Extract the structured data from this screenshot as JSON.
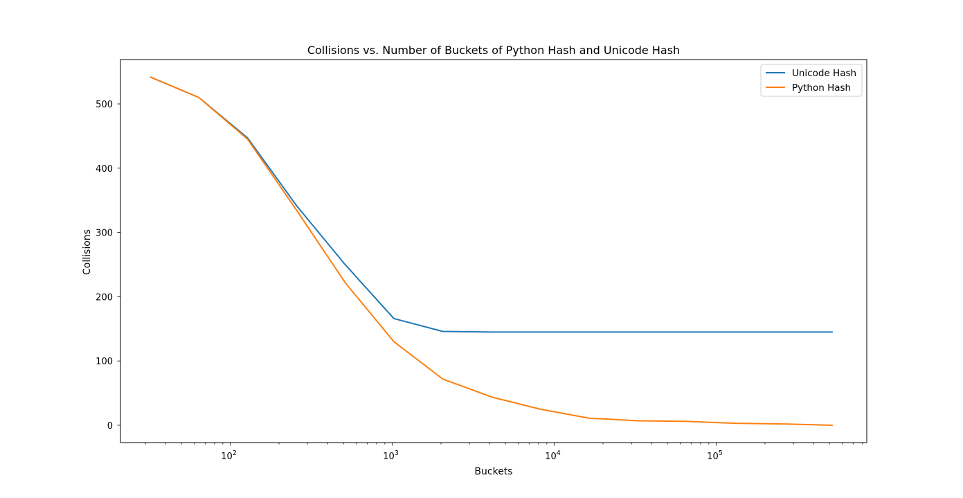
{
  "chart_data": {
    "type": "line",
    "title": "Collisions vs. Number of Buckets of Python Hash and Unicode Hash",
    "xlabel": "Buckets",
    "ylabel": "Collisions",
    "xscale": "log",
    "xlim": [
      21,
      850000
    ],
    "ylim": [
      -27,
      569
    ],
    "grid": false,
    "legend_position": "top-right",
    "x_ticks": [
      {
        "value": 100,
        "base": "10",
        "exp": "2"
      },
      {
        "value": 1000,
        "base": "10",
        "exp": "3"
      },
      {
        "value": 10000,
        "base": "10",
        "exp": "4"
      },
      {
        "value": 100000,
        "base": "10",
        "exp": "5"
      }
    ],
    "y_ticks": [
      {
        "value": 0,
        "label": "0"
      },
      {
        "value": 100,
        "label": "100"
      },
      {
        "value": 200,
        "label": "200"
      },
      {
        "value": 300,
        "label": "300"
      },
      {
        "value": 400,
        "label": "400"
      },
      {
        "value": 500,
        "label": "500"
      }
    ],
    "x": [
      32,
      64,
      128,
      256,
      512,
      1024,
      2048,
      4096,
      8192,
      16384,
      32768,
      65536,
      131072,
      262144,
      524288
    ],
    "series": [
      {
        "name": "Unicode Hash",
        "color": "#1f77b4",
        "values": [
          542,
          510,
          447,
          342,
          250,
          166,
          146,
          145,
          145,
          145,
          145,
          145,
          145,
          145,
          145
        ]
      },
      {
        "name": "Python Hash",
        "color": "#ff7f0e",
        "values": [
          542,
          510,
          445,
          335,
          222,
          130,
          72,
          44,
          25,
          11,
          7,
          6,
          3,
          2,
          0
        ]
      }
    ]
  }
}
